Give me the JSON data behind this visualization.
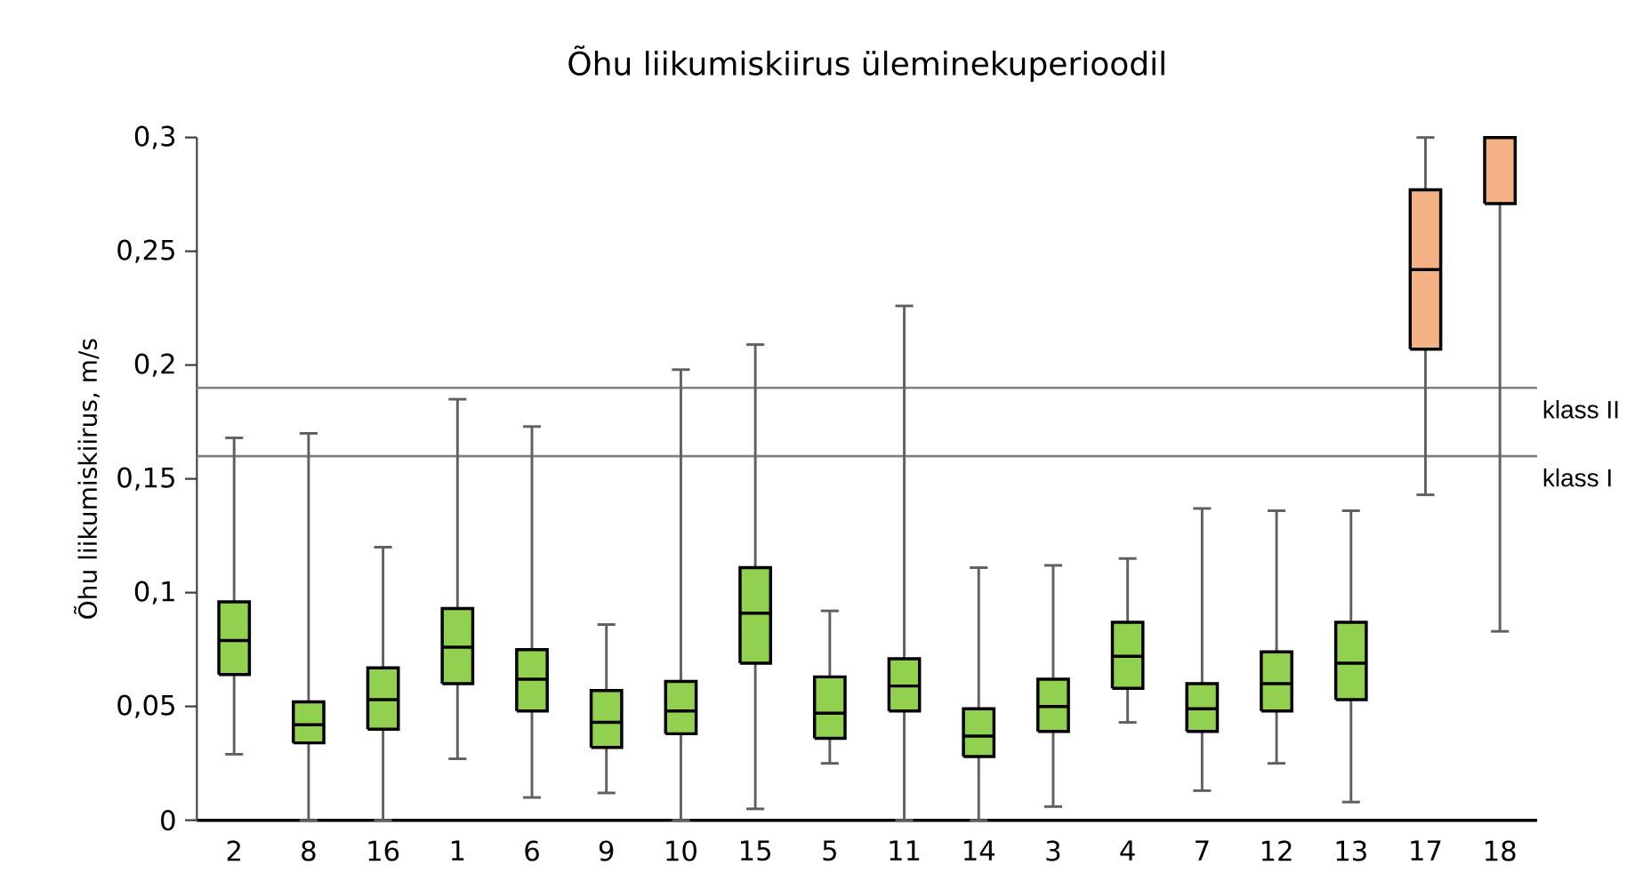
{
  "chart_data": {
    "type": "box",
    "title": "Õhu liikumiskiirus üleminekuperioodil",
    "ylabel": "Õhu liikumiskiirus, m/s",
    "categories": [
      "2",
      "8",
      "16",
      "1",
      "6",
      "9",
      "10",
      "15",
      "5",
      "11",
      "14",
      "3",
      "4",
      "7",
      "12",
      "13",
      "17",
      "18"
    ],
    "boxes": [
      {
        "low": 0.029,
        "q1": 0.064,
        "median": 0.079,
        "q3": 0.096,
        "high": 0.168
      },
      {
        "low": 0,
        "q1": 0.034,
        "median": 0.042,
        "q3": 0.052,
        "high": 0.17
      },
      {
        "low": 0,
        "q1": 0.04,
        "median": 0.053,
        "q3": 0.067,
        "high": 0.12
      },
      {
        "low": 0.027,
        "q1": 0.06,
        "median": 0.076,
        "q3": 0.093,
        "high": 0.185
      },
      {
        "low": 0.01,
        "q1": 0.048,
        "median": 0.062,
        "q3": 0.075,
        "high": 0.173
      },
      {
        "low": 0.012,
        "q1": 0.032,
        "median": 0.043,
        "q3": 0.057,
        "high": 0.086
      },
      {
        "low": 0,
        "q1": 0.038,
        "median": 0.048,
        "q3": 0.061,
        "high": 0.198
      },
      {
        "low": 0.005,
        "q1": 0.069,
        "median": 0.091,
        "q3": 0.111,
        "high": 0.209
      },
      {
        "low": 0.025,
        "q1": 0.036,
        "median": 0.047,
        "q3": 0.063,
        "high": 0.092
      },
      {
        "low": 0,
        "q1": 0.048,
        "median": 0.059,
        "q3": 0.071,
        "high": 0.226
      },
      {
        "low": 0,
        "q1": 0.028,
        "median": 0.037,
        "q3": 0.049,
        "high": 0.111
      },
      {
        "low": 0.006,
        "q1": 0.039,
        "median": 0.05,
        "q3": 0.062,
        "high": 0.112
      },
      {
        "low": 0.043,
        "q1": 0.058,
        "median": 0.072,
        "q3": 0.087,
        "high": 0.115
      },
      {
        "low": 0.013,
        "q1": 0.039,
        "median": 0.049,
        "q3": 0.06,
        "high": 0.137
      },
      {
        "low": 0.025,
        "q1": 0.048,
        "median": 0.06,
        "q3": 0.074,
        "high": 0.136
      },
      {
        "low": 0.008,
        "q1": 0.053,
        "median": 0.069,
        "q3": 0.087,
        "high": 0.136
      },
      {
        "low": 0.143,
        "q1": 0.207,
        "median": 0.242,
        "q3": 0.277,
        "high": 0.3
      },
      {
        "low": 0.083,
        "q1": 0.271,
        "median": null,
        "q3": 0.3,
        "high": 0.3
      }
    ],
    "colors": [
      "#92d050",
      "#92d050",
      "#92d050",
      "#92d050",
      "#92d050",
      "#92d050",
      "#92d050",
      "#92d050",
      "#92d050",
      "#92d050",
      "#92d050",
      "#92d050",
      "#92d050",
      "#92d050",
      "#92d050",
      "#92d050",
      "#f4b183",
      "#f4b183"
    ],
    "ylim": [
      0,
      0.3
    ],
    "yticks": [
      0,
      {
        "value": 0.05,
        "label": "0,05"
      },
      {
        "value": 0.1,
        "label": "0,1"
      },
      {
        "value": 0.15,
        "label": "0,15"
      },
      {
        "value": 0.2,
        "label": "0,2"
      },
      {
        "value": 0.25,
        "label": "0,25"
      },
      {
        "value": 0.3,
        "label": "0,3"
      }
    ],
    "ref_lines": [
      {
        "axis": "y",
        "value": 0.19,
        "label": "klass II",
        "color": "#808080"
      },
      {
        "axis": "y",
        "value": 0.16,
        "label": "klass I",
        "color": "#808080"
      }
    ]
  }
}
